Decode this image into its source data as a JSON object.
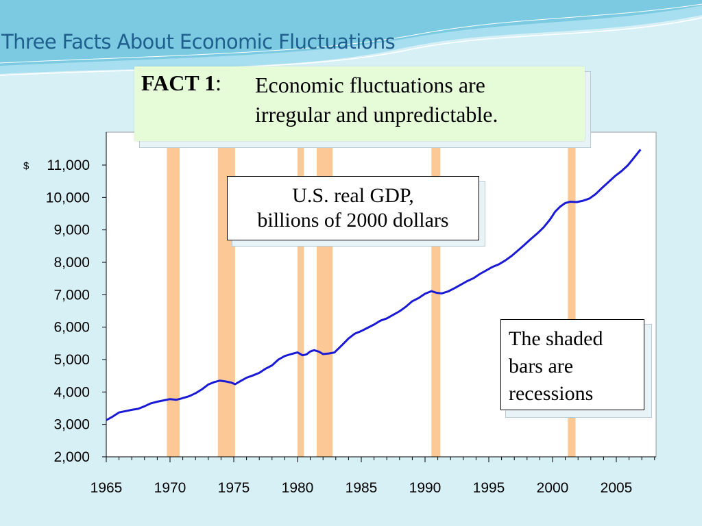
{
  "slide": {
    "title": "Three Facts About Economic Fluctuations",
    "colors": {
      "background": "#d6f0f6",
      "title": "#1f5f8e",
      "wave_dark": "#58b9d6",
      "wave_light": "#a7def0"
    }
  },
  "fact": {
    "label": "FACT 1",
    "colon": ":",
    "line1": "Economic fluctuations are",
    "line2": "irregular and unpredictable."
  },
  "gdp_label": {
    "line1": "U.S. real GDP,",
    "line2": "billions of 2000 dollars"
  },
  "note": {
    "line1": "The shaded",
    "line2": "bars are",
    "line3": "recessions"
  },
  "chart_data": {
    "type": "line",
    "currency_symbol": "$",
    "xlim": [
      1965,
      2008
    ],
    "ylim": [
      2000,
      12000
    ],
    "xticks": [
      1965,
      1970,
      1975,
      1980,
      1985,
      1990,
      1995,
      2000,
      2005
    ],
    "xtick_labels": [
      "1965",
      "1970",
      "1975",
      "1980",
      "1985",
      "1990",
      "1995",
      "2000",
      "2005"
    ],
    "yticks": [
      2000,
      3000,
      4000,
      5000,
      6000,
      7000,
      8000,
      9000,
      10000,
      11000
    ],
    "ytick_labels": [
      "2,000",
      "3,000",
      "4,000",
      "5,000",
      "6,000",
      "7,000",
      "8,000",
      "9,000",
      "10,000",
      "11,000"
    ],
    "line_color": "#1a1ad6",
    "recession_color": "#fcc996",
    "recessions": [
      [
        1969.75,
        1970.75
      ],
      [
        1973.75,
        1975.1
      ],
      [
        1980.0,
        1980.5
      ],
      [
        1981.5,
        1982.75
      ],
      [
        1990.5,
        1991.2
      ],
      [
        2001.2,
        2001.8
      ]
    ],
    "series": [
      {
        "x": [
          1965.0,
          1965.5,
          1966.0,
          1966.5,
          1967.0,
          1967.5,
          1968.0,
          1968.5,
          1969.0,
          1969.5,
          1970.0,
          1970.5,
          1970.9,
          1971.5,
          1972.0,
          1972.5,
          1973.0,
          1973.5,
          1973.9,
          1974.3,
          1974.8,
          1975.1,
          1975.5,
          1976.0,
          1976.5,
          1977.0,
          1977.5,
          1978.0,
          1978.5,
          1979.0,
          1979.5,
          1980.0,
          1980.4,
          1980.7,
          1981.0,
          1981.3,
          1981.7,
          1982.0,
          1982.5,
          1982.9,
          1983.5,
          1984.0,
          1984.5,
          1985.0,
          1985.5,
          1986.0,
          1986.5,
          1987.0,
          1987.5,
          1988.0,
          1988.5,
          1989.0,
          1989.5,
          1990.0,
          1990.5,
          1990.9,
          1991.3,
          1991.8,
          1992.3,
          1992.8,
          1993.3,
          1993.8,
          1994.3,
          1994.8,
          1995.3,
          1995.8,
          1996.3,
          1996.8,
          1997.3,
          1997.8,
          1998.3,
          1998.8,
          1999.3,
          1999.8,
          2000.2,
          2000.6,
          2001.0,
          2001.4,
          2001.9,
          2002.4,
          2002.9,
          2003.4,
          2003.9,
          2004.4,
          2004.9,
          2005.4,
          2005.9,
          2006.4,
          2006.9
        ],
        "y": [
          3130,
          3240,
          3370,
          3410,
          3450,
          3480,
          3560,
          3650,
          3700,
          3740,
          3780,
          3760,
          3800,
          3870,
          3960,
          4080,
          4230,
          4310,
          4350,
          4330,
          4290,
          4240,
          4330,
          4440,
          4510,
          4590,
          4720,
          4820,
          5000,
          5110,
          5170,
          5220,
          5130,
          5160,
          5250,
          5290,
          5240,
          5170,
          5190,
          5220,
          5450,
          5650,
          5800,
          5880,
          5980,
          6080,
          6200,
          6270,
          6380,
          6490,
          6630,
          6800,
          6900,
          7030,
          7110,
          7060,
          7040,
          7100,
          7200,
          7310,
          7420,
          7510,
          7640,
          7750,
          7860,
          7940,
          8060,
          8200,
          8370,
          8540,
          8720,
          8890,
          9080,
          9320,
          9560,
          9720,
          9830,
          9870,
          9860,
          9900,
          9970,
          10110,
          10300,
          10480,
          10660,
          10810,
          10990,
          11230,
          11480
        ]
      }
    ]
  }
}
